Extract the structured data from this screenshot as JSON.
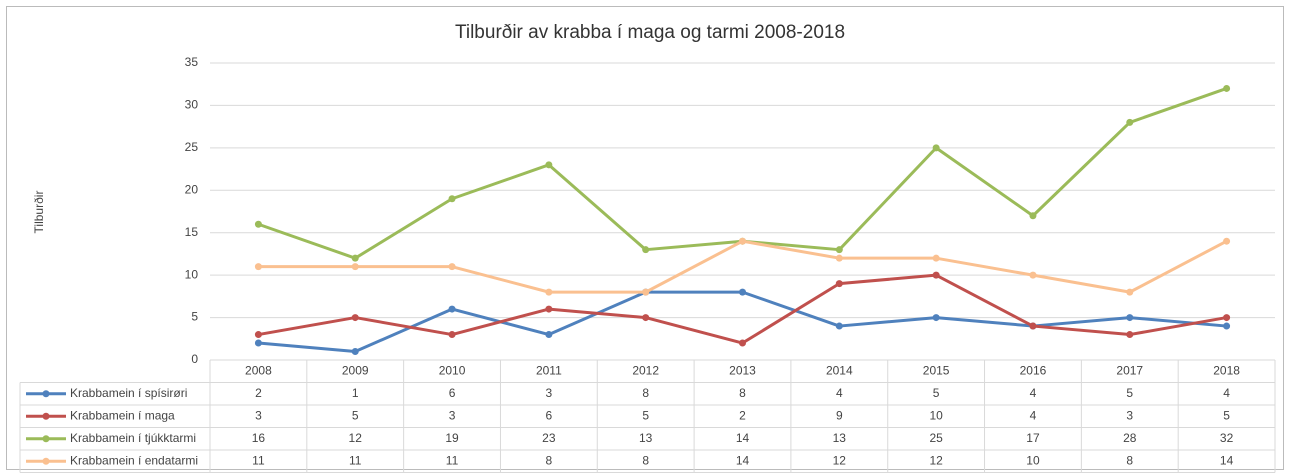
{
  "chart_data": {
    "type": "line",
    "title": "Tilburðir av krabba í maga og tarmi 2008-2018",
    "y_label": "Tilburðir",
    "categories": [
      "2008",
      "2009",
      "2010",
      "2011",
      "2012",
      "2013",
      "2014",
      "2015",
      "2016",
      "2017",
      "2018"
    ],
    "series": [
      {
        "name": "Krabbamein í spísirøri",
        "color": "#4f81bd",
        "values": [
          2,
          1,
          6,
          3,
          8,
          8,
          4,
          5,
          4,
          5,
          4
        ]
      },
      {
        "name": "Krabbamein í maga",
        "color": "#c0504d",
        "values": [
          3,
          5,
          3,
          6,
          5,
          2,
          9,
          10,
          4,
          3,
          5
        ]
      },
      {
        "name": "Krabbamein í tjúkktarmi",
        "color": "#9bbb59",
        "values": [
          16,
          12,
          19,
          23,
          13,
          14,
          13,
          25,
          17,
          28,
          32
        ]
      },
      {
        "name": "Krabbamein í endatarmi",
        "color": "#fac090",
        "values": [
          11,
          11,
          11,
          8,
          8,
          14,
          12,
          12,
          10,
          8,
          14
        ]
      }
    ],
    "ylim": [
      0,
      35
    ],
    "yticks": [
      0,
      5,
      10,
      15,
      20,
      25,
      30,
      35
    ],
    "grid": true,
    "data_table": true
  }
}
